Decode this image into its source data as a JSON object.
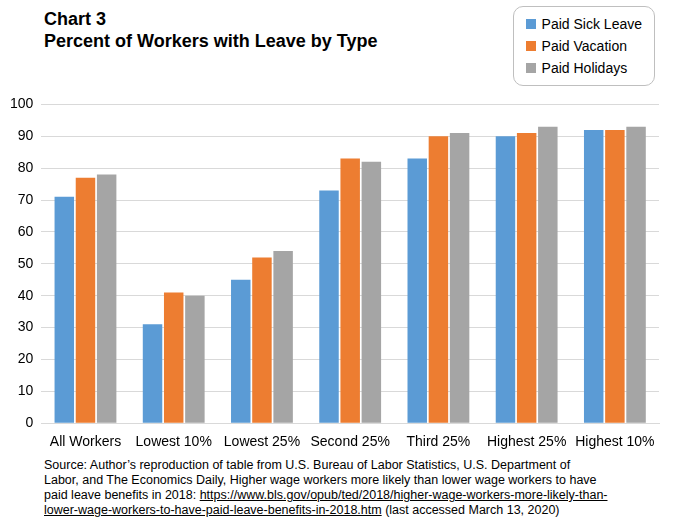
{
  "chart_data": {
    "type": "bar",
    "title": "Chart 3",
    "subtitle": "Percent of Workers with Leave by Type",
    "categories": [
      "All Workers",
      "Lowest 10%",
      "Lowest 25%",
      "Second 25%",
      "Third 25%",
      "Highest 25%",
      "Highest 10%"
    ],
    "series": [
      {
        "name": "Paid Sick Leave",
        "color": "#5B9BD5",
        "values": [
          71,
          31,
          45,
          73,
          83,
          90,
          92
        ]
      },
      {
        "name": "Paid Vacation",
        "color": "#ED7D31",
        "values": [
          77,
          41,
          52,
          83,
          90,
          91,
          92
        ]
      },
      {
        "name": "Paid Holidays",
        "color": "#A5A5A5",
        "values": [
          78,
          40,
          54,
          82,
          91,
          93,
          93
        ]
      }
    ],
    "ylim": [
      0,
      100
    ],
    "yticks": [
      0,
      10,
      20,
      30,
      40,
      50,
      60,
      70,
      80,
      90,
      100
    ],
    "grid": true,
    "legend": "top right",
    "source": [
      "Source: Author’s reproduction of table from U.S. Bureau of Labor Statistics, U.S. Department of",
      "Labor, and The Economics Daily, Higher wage workers more likely than lower wage workers to have",
      "paid leave benefits in 2018: https://www.bls.gov/opub/ted/2018/higher-wage-workers-more-likely-than-",
      "lower-wage-workers-to-have-paid-leave-benefits-in-2018.htm (last accessed March 13, 2020)"
    ]
  }
}
